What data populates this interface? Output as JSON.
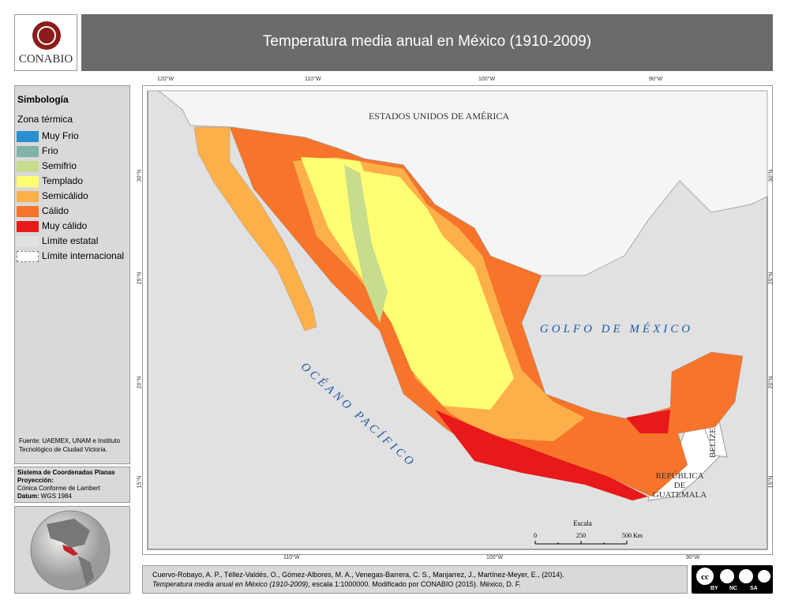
{
  "header": {
    "logo": "CONABIO",
    "title": "Temperatura media anual en México (1910-2009)"
  },
  "legend": {
    "title": "Simbología",
    "subtitle": "Zona térmica",
    "items": [
      {
        "label": "Muy Frio",
        "color": "#2b8fcf"
      },
      {
        "label": "Frio",
        "color": "#7fb3a8"
      },
      {
        "label": "Semifrio",
        "color": "#c7dc8c"
      },
      {
        "label": "Templado",
        "color": "#ffff73"
      },
      {
        "label": "Semicálido",
        "color": "#fdb04a"
      },
      {
        "label": "Cálido",
        "color": "#f7742a"
      },
      {
        "label": "Muy cálido",
        "color": "#e8191a"
      },
      {
        "label": "Límite estatal",
        "color": "#e1e1e1"
      },
      {
        "label": "Límite internacional",
        "color": "#ffffff"
      }
    ]
  },
  "source": "Fuente: UAEMEX, UNAM e Instituto Tecnológico de Ciudad Victoria.",
  "projection": {
    "system": "Sistema de Coordenadas Planas",
    "proj_label": "Proyección:",
    "proj": "Cónica Conforme de Lambert",
    "datum_label": "Datum:",
    "datum": "WGS 1984"
  },
  "map": {
    "top_ticks": [
      "120°W",
      "110°W",
      "100°W",
      "90°W"
    ],
    "bottom_ticks": [
      "110°W",
      "100°W",
      "90°W"
    ],
    "lat_ticks": [
      "30°N",
      "25°N",
      "20°N",
      "15°N"
    ],
    "labels": {
      "usa": "ESTADOS UNIDOS DE AMÉRICA",
      "gulf": "GOLFO DE MÉXICO",
      "pacific": "OCÉANO PACÍFICO",
      "belize": "BELIZE",
      "guatemala": [
        "REPÚBLICA",
        "DE",
        "GUATEMALA"
      ]
    },
    "scale": {
      "title": "Escala",
      "ticks": [
        "0",
        "250",
        "500 Km"
      ]
    }
  },
  "citation": {
    "line1": "Cuervo-Robayo, A. P., Téllez-Valdés, O., Gómez-Albores, M. A., Venegas-Barrera, C. S., Manjarrez, J., Martínez-Meyer, E., (2014).",
    "work": "Temperatura media anual en México (1910-2009)",
    "rest": ", escala 1:1000000. Modificado por CONABIO (2015). México, D. F."
  },
  "license": [
    "BY",
    "NC",
    "SA"
  ]
}
